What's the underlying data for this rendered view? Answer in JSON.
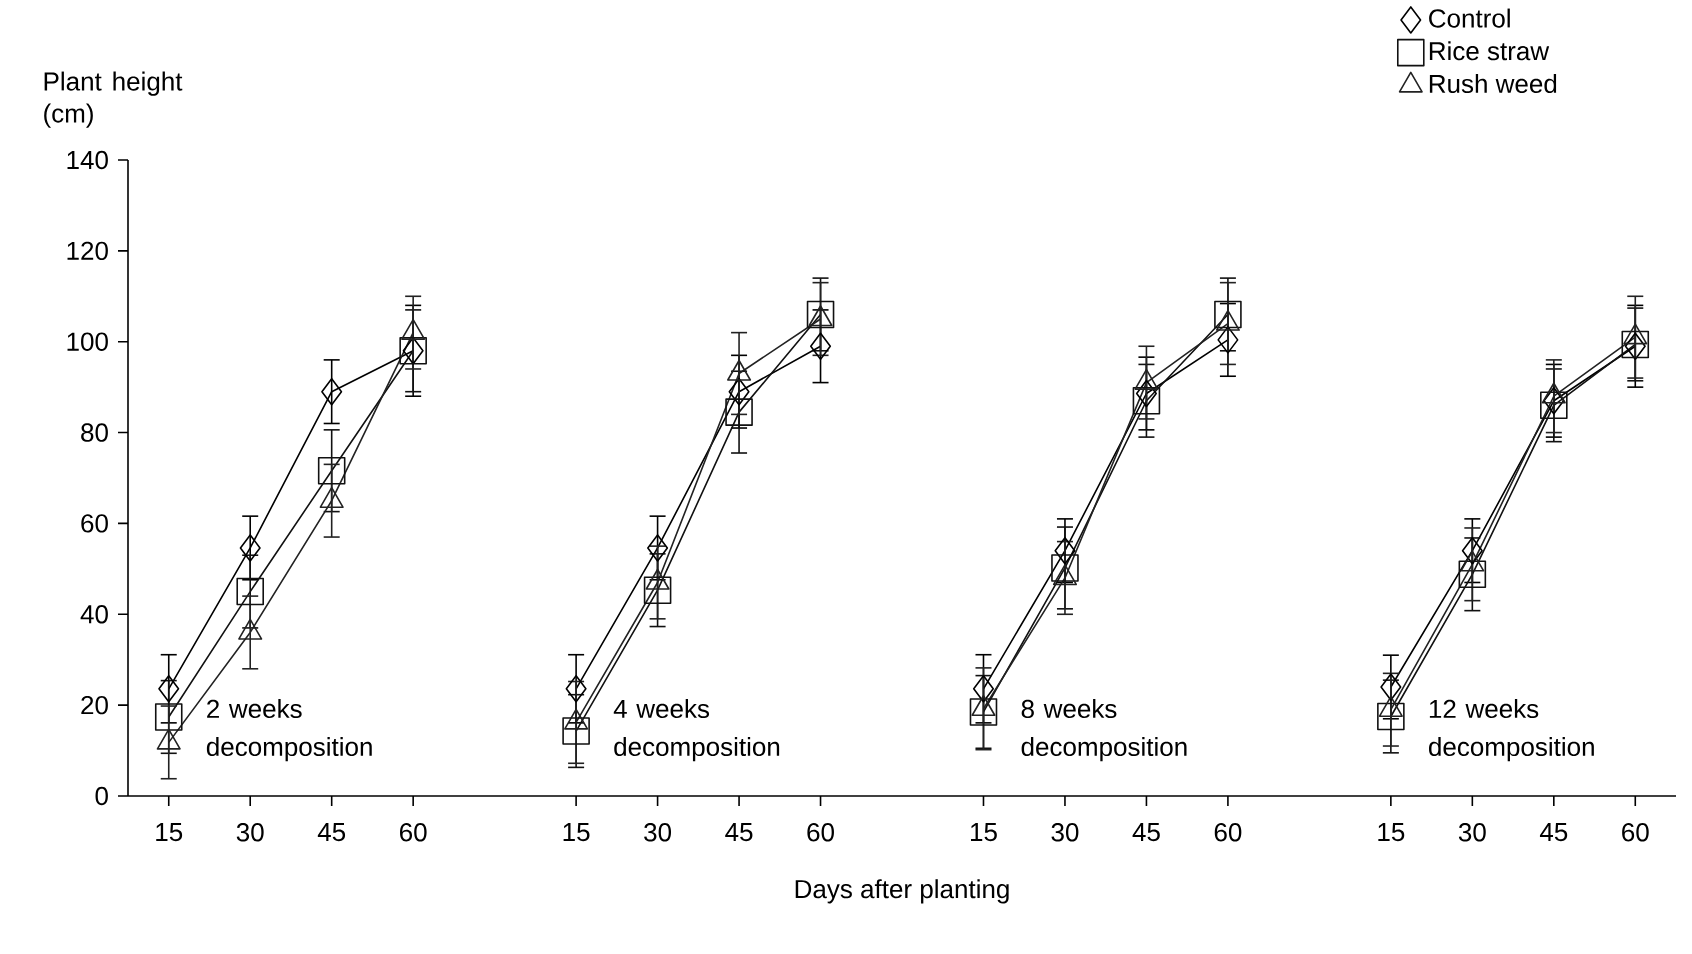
{
  "chart_data": {
    "type": "line",
    "xlabel": "Days after planting",
    "ylabel": "Plant height (cm)",
    "categories": [
      "15",
      "30",
      "45",
      "60",
      null,
      "15",
      "30",
      "45",
      "60",
      null,
      "15",
      "30",
      "45",
      "60",
      null,
      "15",
      "30",
      "45",
      "60"
    ],
    "series": [
      {
        "name": "Control",
        "color": "#000000",
        "marker": "diamond",
        "values": [
          23.6,
          54.6,
          89,
          98,
          null,
          23.6,
          54.6,
          89,
          99,
          null,
          23.6,
          54,
          88.6,
          100.4,
          null,
          24,
          54,
          87,
          99
        ],
        "errors": [
          7.5,
          7,
          7,
          10,
          null,
          7.5,
          7,
          8,
          8,
          null,
          7.5,
          7,
          8,
          8,
          null,
          7,
          7,
          8,
          9
        ]
      },
      {
        "name": "Rice straw",
        "color": "#111111",
        "marker": "square",
        "values": [
          17.4,
          45,
          71.6,
          98,
          null,
          14.3,
          45.3,
          84.5,
          106,
          null,
          18.5,
          50.2,
          87,
          106,
          null,
          17.5,
          48.8,
          86,
          99.4
        ],
        "errors": [
          8,
          8,
          9,
          9,
          null,
          8,
          8,
          9,
          8,
          null,
          8,
          9,
          8,
          8,
          null,
          8,
          8,
          8,
          8
        ]
      },
      {
        "name": "Rush weed",
        "color": "#222222",
        "marker": "triangle",
        "values": [
          11.8,
          36,
          65,
          102,
          null,
          16.2,
          47,
          93,
          105,
          null,
          19.2,
          48,
          91,
          104,
          null,
          19,
          51,
          88,
          101
        ],
        "errors": [
          8,
          8,
          8,
          8,
          null,
          9,
          8,
          9,
          8,
          null,
          9,
          8,
          8,
          9,
          null,
          8,
          8,
          8,
          9
        ]
      }
    ],
    "ylim": [
      0,
      140
    ],
    "yticks": [
      0,
      20,
      40,
      60,
      80,
      100,
      120,
      140
    ],
    "legend": "top right",
    "annotations": [
      "2 weeks decomposition",
      "4 weeks decomposition",
      "8 weeks decomposition",
      "12 weeks decomposition"
    ]
  }
}
